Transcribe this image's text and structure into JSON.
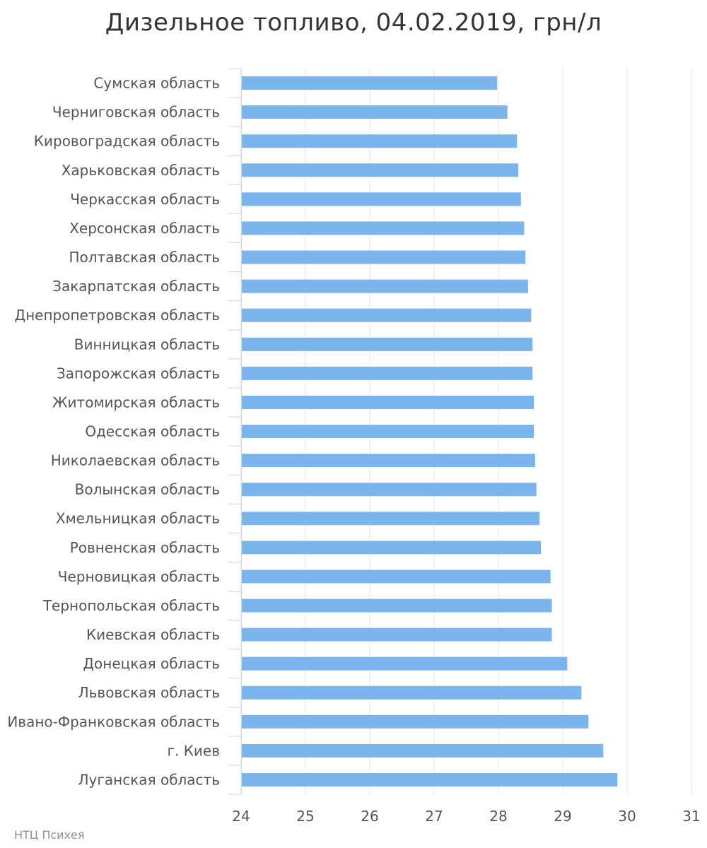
{
  "chart_data": {
    "type": "bar",
    "orientation": "horizontal",
    "title": "Дизельное топливо, 04.02.2019, грн/л",
    "xlabel": "",
    "ylabel": "",
    "categories": [
      "Сумская область",
      "Черниговская область",
      "Кировоградская область",
      "Харьковская область",
      "Черкасская область",
      "Херсонская область",
      "Полтавская область",
      "Закарпатская область",
      "Днепропетровская область",
      "Винницкая область",
      "Запорожская область",
      "Житомирская область",
      "Одесская область",
      "Николаевская область",
      "Волынская область",
      "Хмельницкая область",
      "Ровненская область",
      "Черновицкая область",
      "Тернопольская область",
      "Киевская область",
      "Донецкая область",
      "Львовская область",
      "Ивано-Франковская область",
      "г. Киев",
      "Луганская область"
    ],
    "values": [
      27.98,
      28.14,
      28.29,
      28.31,
      28.35,
      28.4,
      28.42,
      28.46,
      28.51,
      28.53,
      28.53,
      28.55,
      28.55,
      28.57,
      28.59,
      28.64,
      28.66,
      28.81,
      28.83,
      28.83,
      29.07,
      29.29,
      29.4,
      29.63,
      29.85
    ],
    "xlim": [
      24,
      31
    ],
    "ticks": [
      "24",
      "25",
      "26",
      "27",
      "28",
      "29",
      "30",
      "31"
    ],
    "grid": true,
    "legend": "none",
    "bar_color": "#7cb5ec",
    "grid_color": "#e6e6e6"
  },
  "credits": "НТЦ Психея"
}
